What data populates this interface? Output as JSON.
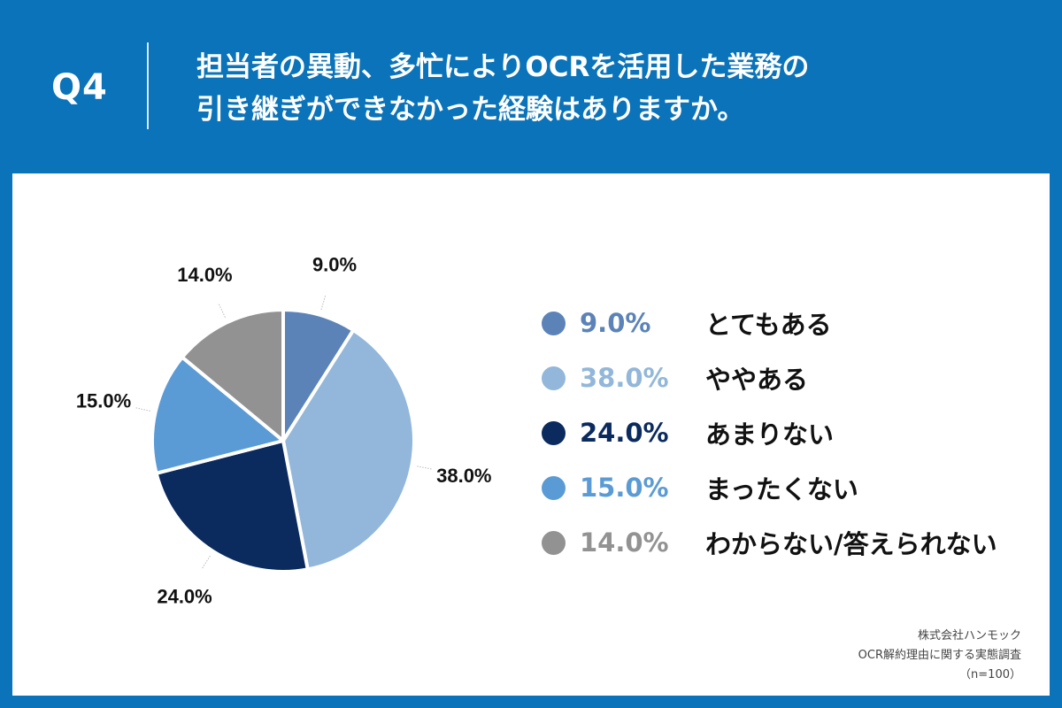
{
  "header": {
    "question_label": "Q4",
    "title_line1": "担当者の異動、多忙によりOCRを活用した業務の",
    "title_line2": "引き継ぎができなかった経験はありますか。"
  },
  "chart_data": {
    "type": "pie",
    "title": "担当者の異動、多忙によりOCRを活用した業務の引き継ぎができなかった経験はありますか。",
    "start_angle_deg": 0,
    "direction": "clockwise",
    "slices": [
      {
        "label": "とてもある",
        "value": 9.0,
        "display": "9.0%",
        "color": "#5b83b8"
      },
      {
        "label": "ややある",
        "value": 38.0,
        "display": "38.0%",
        "color": "#92b7da"
      },
      {
        "label": "あまりない",
        "value": 24.0,
        "display": "24.0%",
        "color": "#0b2a5e"
      },
      {
        "label": "まったくない",
        "value": 15.0,
        "display": "15.0%",
        "color": "#5b9bd5"
      },
      {
        "label": "わからない/答えられない",
        "value": 14.0,
        "display": "14.0%",
        "color": "#929292"
      }
    ]
  },
  "legend": {
    "items": [
      {
        "pct": "9.0%",
        "label": "とてもある",
        "pct_color": "#5b83b8"
      },
      {
        "pct": "38.0%",
        "label": "ややある",
        "pct_color": "#92b7da"
      },
      {
        "pct": "24.0%",
        "label": "あまりない",
        "pct_color": "#0b2a5e"
      },
      {
        "pct": "15.0%",
        "label": "まったくない",
        "pct_color": "#5b9bd5"
      },
      {
        "pct": "14.0%",
        "label": "わからない/答えられない",
        "pct_color": "#929292"
      }
    ]
  },
  "footer": {
    "company": "株式会社ハンモック",
    "survey": "OCR解約理由に関する実態調査",
    "sample": "（n=100）"
  }
}
